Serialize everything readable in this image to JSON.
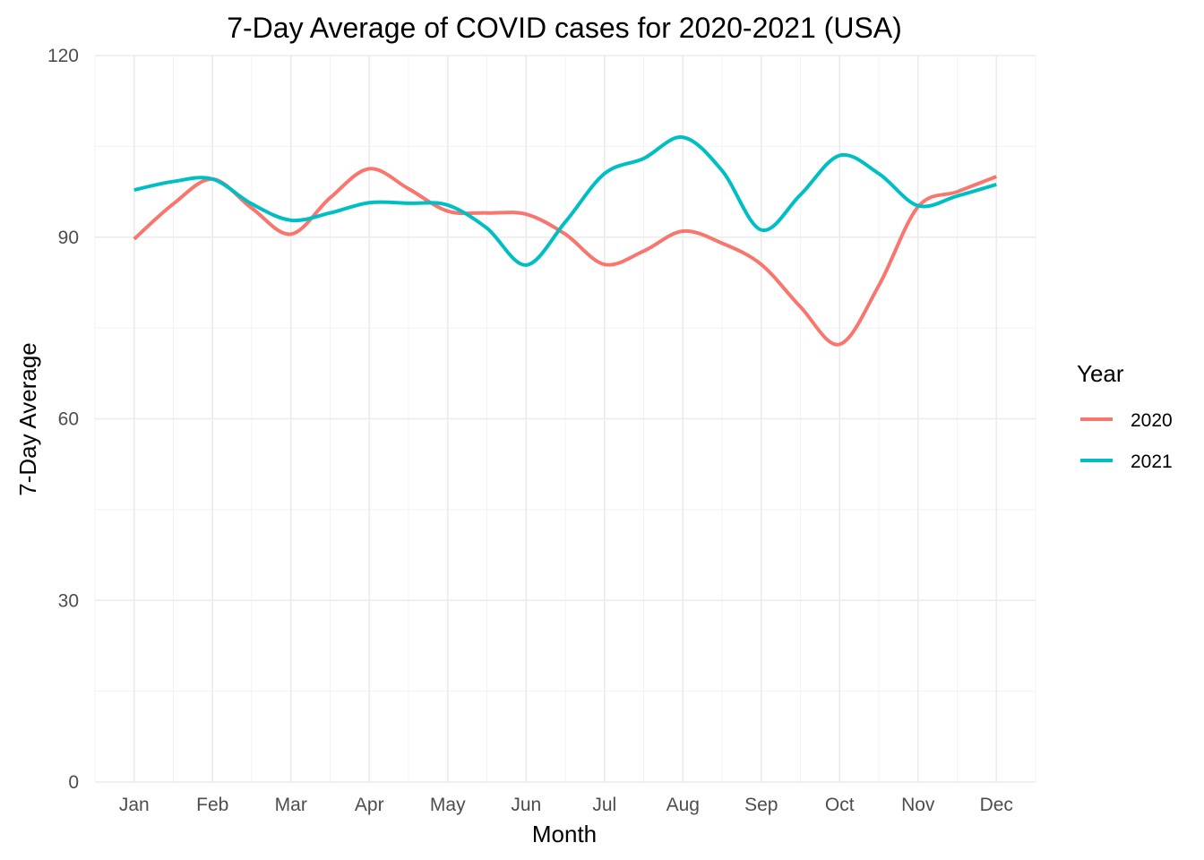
{
  "chart_data": {
    "type": "line",
    "title": "7-Day Average of COVID cases for 2020-2021 (USA)",
    "xlabel": "Month",
    "ylabel": "7-Day Average",
    "categories": [
      "Jan",
      "Feb",
      "Mar",
      "Apr",
      "May",
      "Jun",
      "Jul",
      "Aug",
      "Sep",
      "Oct",
      "Nov",
      "Dec"
    ],
    "x": [
      1,
      1.5,
      2,
      2.5,
      3,
      3.5,
      4,
      4.5,
      5,
      5.5,
      6,
      6.5,
      7,
      7.5,
      8,
      8.5,
      9,
      9.5,
      10,
      10.5,
      11,
      11.5,
      12
    ],
    "ylim": [
      0,
      120
    ],
    "yticks": [
      0,
      30,
      60,
      90,
      120
    ],
    "grid": true,
    "legend": {
      "title": "Year",
      "position": "right"
    },
    "series": [
      {
        "name": "2020",
        "color": "#F8766D",
        "values": [
          89.7,
          95.5,
          99.6,
          94.8,
          90.5,
          96.5,
          101.3,
          98.0,
          94.3,
          94.0,
          93.8,
          90.5,
          85.5,
          87.7,
          91.0,
          89.0,
          85.5,
          78.5,
          72.3,
          82.0,
          95.0,
          97.5,
          100.0
        ]
      },
      {
        "name": "2021",
        "color": "#00BFC4",
        "values": [
          97.8,
          99.2,
          99.6,
          95.5,
          92.8,
          94.0,
          95.7,
          95.6,
          95.3,
          91.5,
          85.4,
          92.5,
          100.5,
          103.0,
          106.5,
          101.0,
          91.2,
          97.0,
          103.5,
          100.5,
          95.2,
          96.8,
          98.7
        ]
      }
    ]
  }
}
